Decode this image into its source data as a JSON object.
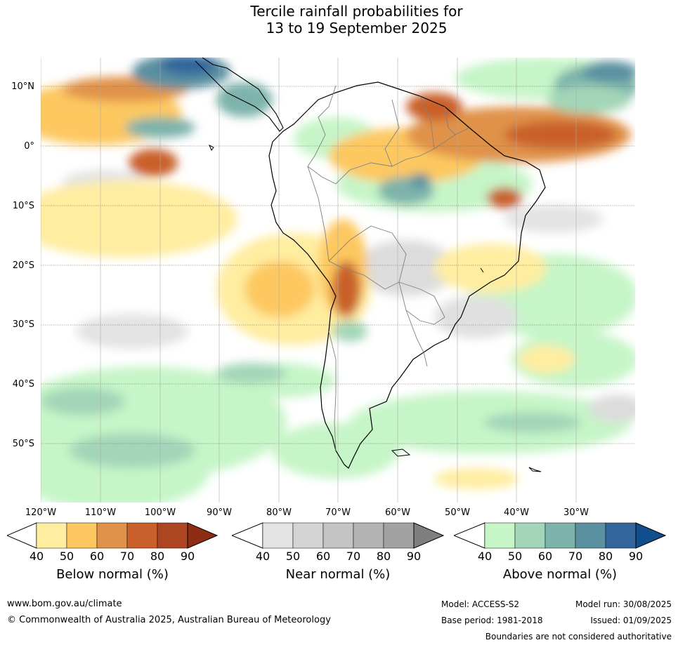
{
  "title": {
    "line1": "Tercile rainfall probabilities for",
    "line2": "13 to 19 September 2025"
  },
  "map": {
    "lat_labels": [
      "10°N",
      "0°",
      "10°S",
      "20°S",
      "30°S",
      "40°S",
      "50°S"
    ],
    "lon_labels": [
      "120°W",
      "110°W",
      "100°W",
      "90°W",
      "80°W",
      "70°W",
      "60°W",
      "50°W",
      "40°W",
      "30°W"
    ]
  },
  "colorbars": [
    {
      "name": "below-normal",
      "title": "Below normal (%)",
      "ticks": [
        "40",
        "50",
        "60",
        "70",
        "80",
        "90"
      ],
      "colors": [
        "#ffeda0",
        "#fdc861",
        "#e0924a",
        "#c9602c",
        "#ad4522",
        "#8c2d14"
      ]
    },
    {
      "name": "near-normal",
      "title": "Near normal (%)",
      "ticks": [
        "40",
        "50",
        "60",
        "70",
        "80",
        "90"
      ],
      "colors": [
        "#e3e3e3",
        "#d4d4d4",
        "#c4c4c4",
        "#b3b3b3",
        "#a2a2a2",
        "#7f7f7f"
      ]
    },
    {
      "name": "above-normal",
      "title": "Above normal (%)",
      "ticks": [
        "40",
        "50",
        "60",
        "70",
        "80",
        "90"
      ],
      "colors": [
        "#c6f5c8",
        "#a3d6b8",
        "#7db3ab",
        "#5a90a0",
        "#33669c",
        "#124e8c"
      ]
    }
  ],
  "footer": {
    "website": "www.bom.gov.au/climate",
    "copyright": "© Commonwealth of Australia 2025, Australian Bureau of Meteorology",
    "model": "Model: ACCESS-S2",
    "model_run": "Model run: 30/08/2025",
    "base_period": "Base period: 1981-2018",
    "issued": "Issued: 01/09/2025",
    "disclaimer": "Boundaries are not considered authoritative"
  }
}
